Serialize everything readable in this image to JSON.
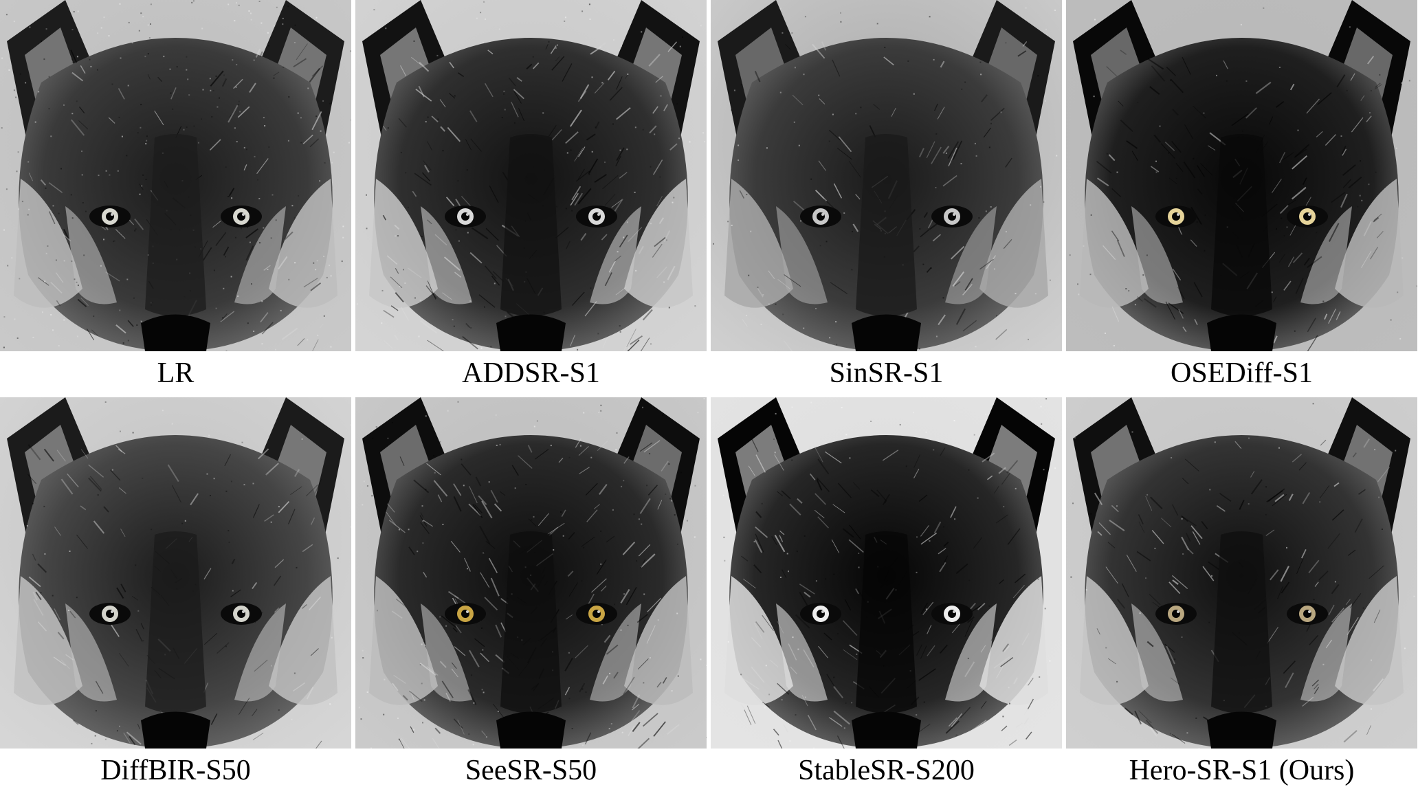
{
  "panels": [
    {
      "caption": "LR",
      "style": "grainy",
      "eye": "#d8d8d0"
    },
    {
      "caption": "ADDSR-S1",
      "style": "sharp",
      "eye": "#d9d9d9"
    },
    {
      "caption": "SinSR-S1",
      "style": "flat",
      "eye": "#c8c8c8"
    },
    {
      "caption": "OSEDiff-S1",
      "style": "dark",
      "eye": "#e6d49a"
    },
    {
      "caption": "DiffBIR-S50",
      "style": "soft",
      "eye": "#d4d4cc"
    },
    {
      "caption": "SeeSR-S50",
      "style": "textured",
      "eye": "#c9a544"
    },
    {
      "caption": "StableSR-S200",
      "style": "contrast",
      "eye": "#eeeeee"
    },
    {
      "caption": "Hero-SR-S1 (Ours)",
      "style": "clean",
      "eye": "#b9a780"
    }
  ],
  "image_subject": "wolf-face",
  "colors": {
    "background": "#ffffff",
    "caption_text": "#000000"
  }
}
